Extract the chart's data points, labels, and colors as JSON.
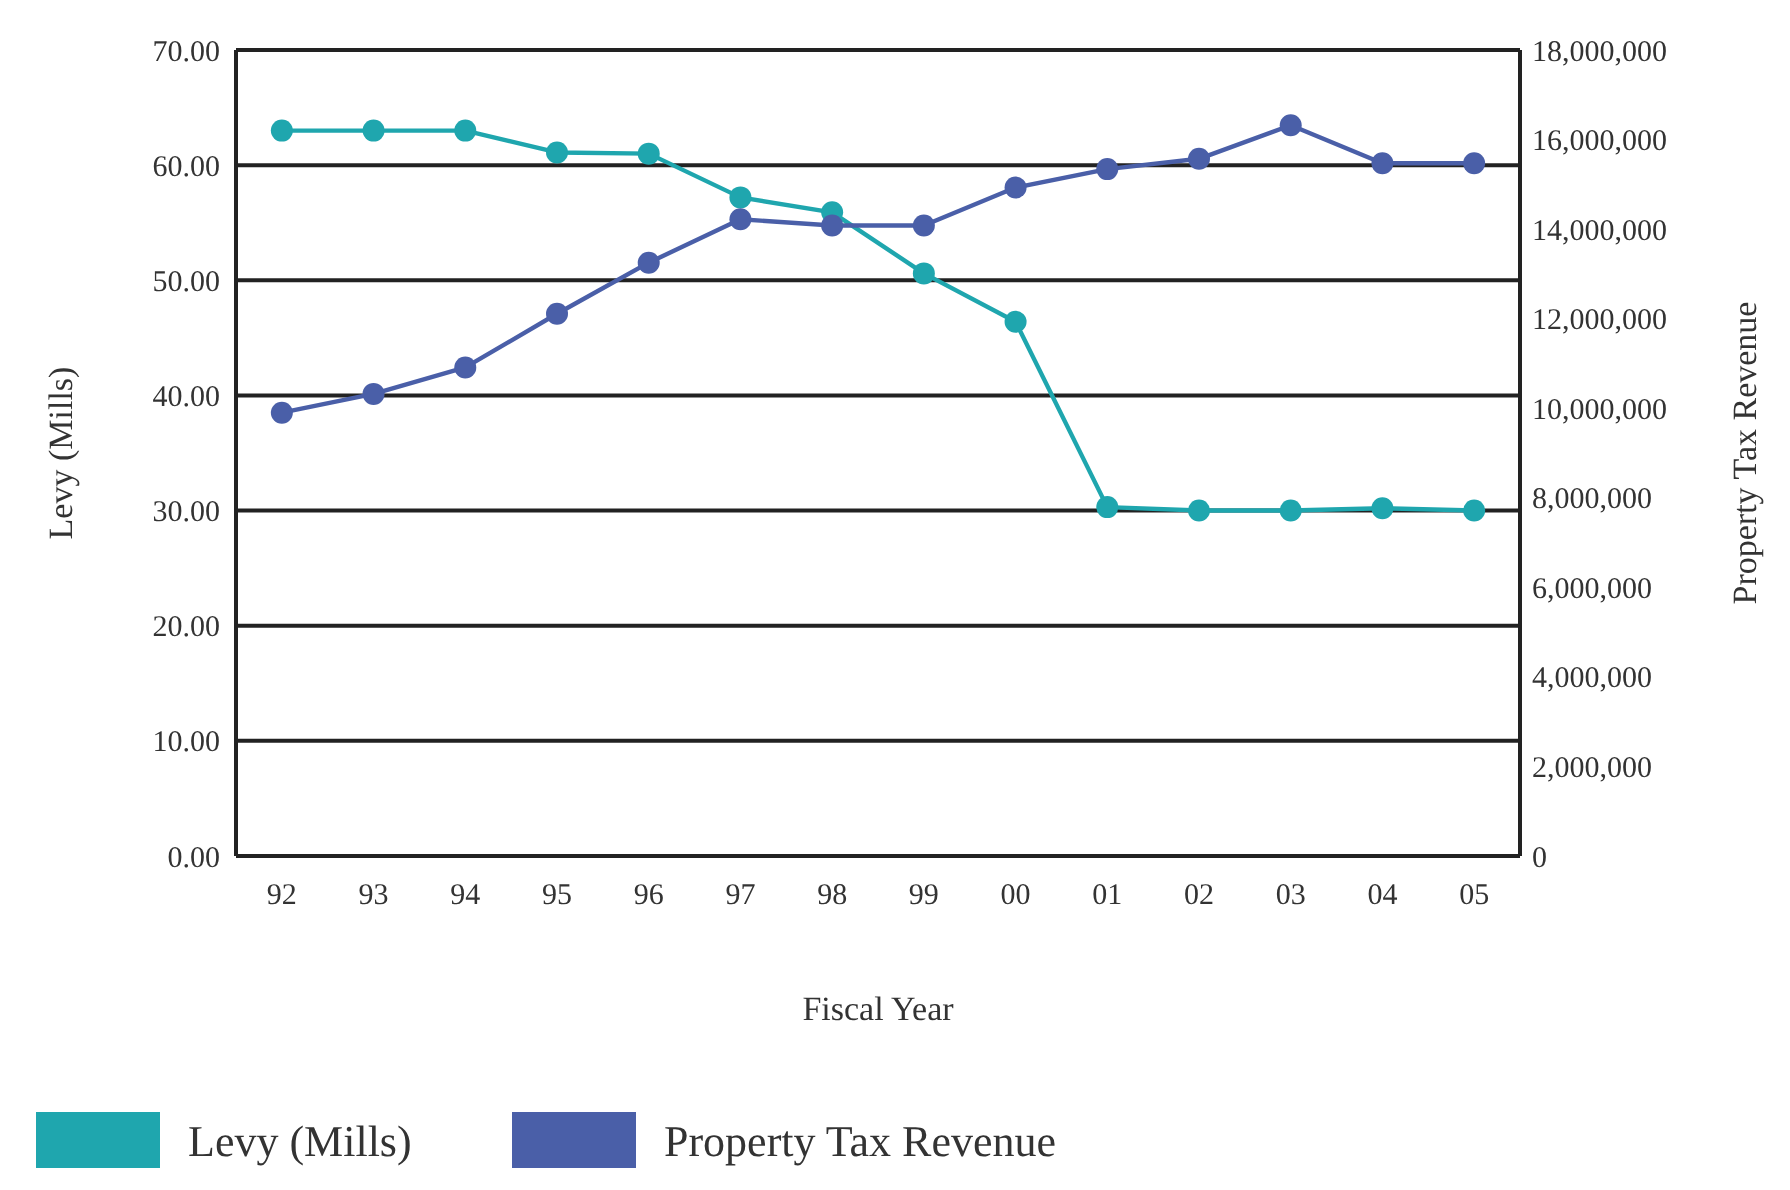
{
  "chart_data": {
    "type": "line",
    "xlabel": "Fiscal Year",
    "ylabel": "Levy (Mills)",
    "y2label": "Property Tax Revenue",
    "categories": [
      "92",
      "93",
      "94",
      "95",
      "96",
      "97",
      "98",
      "99",
      "00",
      "01",
      "02",
      "03",
      "04",
      "05"
    ],
    "series": [
      {
        "name": "Levy (Mills)",
        "color": "#1fa6ae",
        "values": [
          63.0,
          63.0,
          63.0,
          61.1,
          61.0,
          57.2,
          55.9,
          50.6,
          46.4,
          30.3,
          30.0,
          30.0,
          30.2,
          30.0
        ]
      },
      {
        "name": "Property Tax Revenue",
        "color": "#4a5fa8",
        "axis": "y2",
        "values": [
          9900000,
          10320000,
          10910000,
          12110000,
          13250000,
          14220000,
          14080000,
          14080000,
          14930000,
          15340000,
          15570000,
          16320000,
          15470000,
          15470000
        ]
      }
    ],
    "ylim": [
      0,
      70
    ],
    "yticks": [
      {
        "value": 0,
        "label": "0.00"
      },
      {
        "value": 10,
        "label": "10.00"
      },
      {
        "value": 20,
        "label": "20.00"
      },
      {
        "value": 30,
        "label": "30.00"
      },
      {
        "value": 40,
        "label": "40.00"
      },
      {
        "value": 50,
        "label": "50.00"
      },
      {
        "value": 60,
        "label": "60.00"
      },
      {
        "value": 70,
        "label": "70.00"
      }
    ],
    "y2lim": [
      0,
      18000000
    ],
    "y2ticks": [
      0,
      {
        "value": 2000000,
        "label": "2,000,000"
      },
      {
        "value": 4000000,
        "label": "4,000,000"
      },
      {
        "value": 6000000,
        "label": "6,000,000"
      },
      {
        "value": 8000000,
        "label": "8,000,000"
      },
      {
        "value": 10000000,
        "label": "10,000,000"
      },
      {
        "value": 12000000,
        "label": "12,000,000"
      },
      {
        "value": 14000000,
        "label": "14,000,000"
      },
      {
        "value": 16000000,
        "label": "16,000,000"
      },
      {
        "value": 18000000,
        "label": "18,000,000"
      }
    ],
    "grid": "y",
    "legend": "bottom",
    "marker": "circle",
    "line_style": "solid"
  }
}
